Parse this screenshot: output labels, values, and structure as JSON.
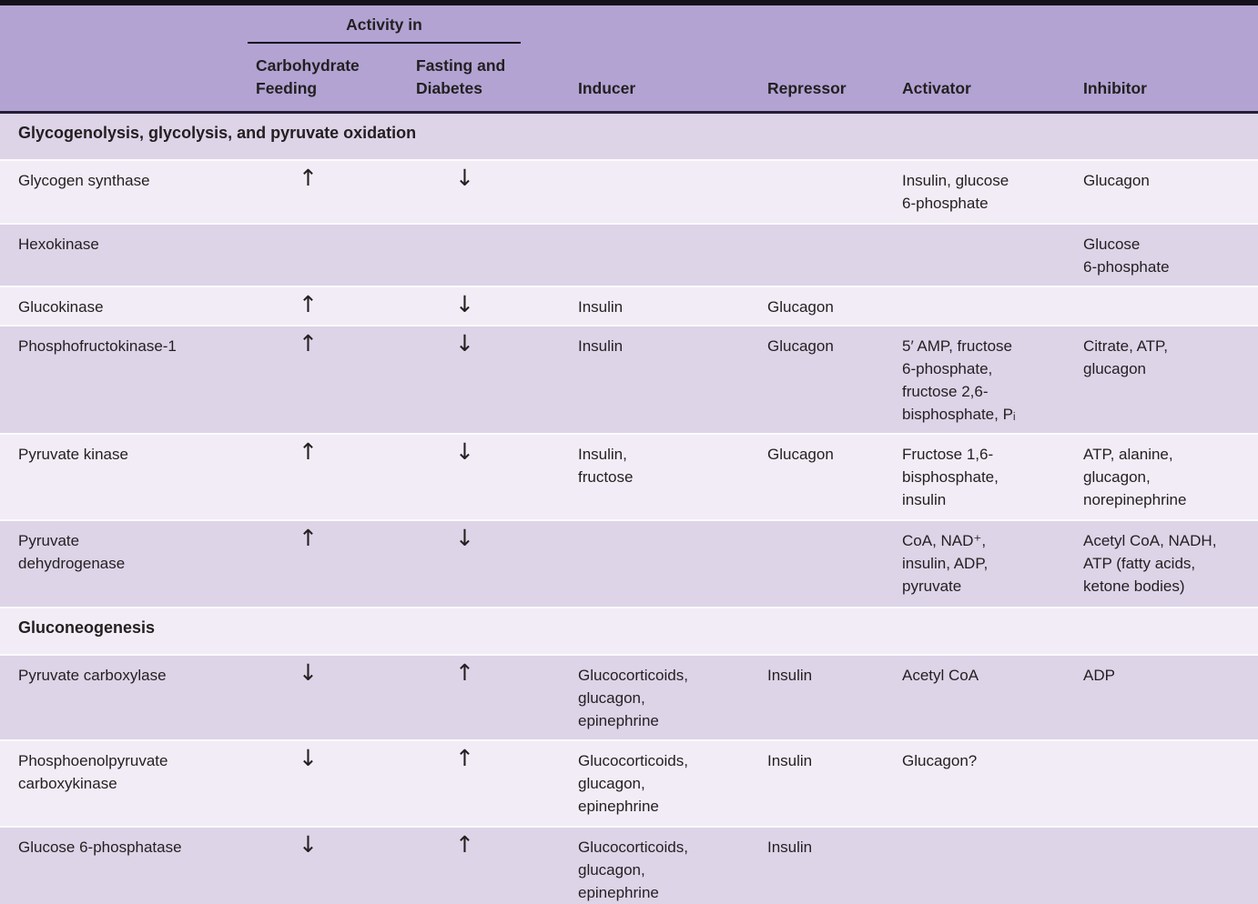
{
  "table": {
    "kind": "enzyme-regulation-table",
    "colors": {
      "header_bg": "#b2a3d3",
      "row_light": "#f1ecf6",
      "row_dark": "#ddd4e8",
      "text": "#231f20",
      "top_bar": "#15101e"
    },
    "header": {
      "activity_group_label": "Activity in",
      "col_carbohydrate": "Carbohydrate\nFeeding",
      "col_fasting": "Fasting and\nDiabetes",
      "col_inducer": "Inducer",
      "col_repressor": "Repressor",
      "col_activator": "Activator",
      "col_inhibitor": "Inhibitor"
    },
    "section1": {
      "title": "Glycogenolysis, glycolysis, and pyruvate oxidation"
    },
    "section2": {
      "title": "Gluconeogenesis"
    },
    "rows": [
      {
        "enzyme": "Glycogen synthase",
        "carb": "↑",
        "fasting": "↓",
        "inducer": "",
        "repressor": "",
        "activator": "Insulin, glucose\n6-phosphate",
        "inhibitor": "Glucagon"
      },
      {
        "enzyme": "Hexokinase",
        "carb": "",
        "fasting": "",
        "inducer": "",
        "repressor": "",
        "activator": "",
        "inhibitor": "Glucose\n6-phosphate"
      },
      {
        "enzyme": "Glucokinase",
        "carb": "↑",
        "fasting": "↓",
        "inducer": "Insulin",
        "repressor": "Glucagon",
        "activator": "",
        "inhibitor": ""
      },
      {
        "enzyme": "Phosphofructokinase-1",
        "carb": "↑",
        "fasting": "↓",
        "inducer": "Insulin",
        "repressor": "Glucagon",
        "activator": "5′ AMP, fructose\n6-phosphate,\nfructose 2,6-\nbisphosphate, Pᵢ",
        "inhibitor": "Citrate, ATP,\nglucagon"
      },
      {
        "enzyme": "Pyruvate kinase",
        "carb": "↑",
        "fasting": "↓",
        "inducer": "Insulin,\nfructose",
        "repressor": "Glucagon",
        "activator": "Fructose 1,6-\nbisphosphate,\ninsulin",
        "inhibitor": "ATP, alanine,\nglucagon,\nnorepinephrine"
      },
      {
        "enzyme": "Pyruvate\ndehydrogenase",
        "carb": "↑",
        "fasting": "↓",
        "inducer": "",
        "repressor": "",
        "activator": "CoA, NAD⁺,\ninsulin, ADP,\npyruvate",
        "inhibitor": "Acetyl CoA, NADH,\nATP (fatty acids,\nketone bodies)"
      },
      {
        "enzyme": "Pyruvate carboxylase",
        "carb": "↓",
        "fasting": "↑",
        "inducer": "Glucocorticoids,\nglucagon,\nepinephrine",
        "repressor": "Insulin",
        "activator": "Acetyl CoA",
        "inhibitor": "ADP"
      },
      {
        "enzyme": "Phosphoenolpyruvate\ncarboxykinase",
        "carb": "↓",
        "fasting": "↑",
        "inducer": "Glucocorticoids,\nglucagon,\nepinephrine",
        "repressor": "Insulin",
        "activator": "Glucagon?",
        "inhibitor": ""
      },
      {
        "enzyme": "Glucose 6-phosphatase",
        "carb": "↓",
        "fasting": "↑",
        "inducer": "Glucocorticoids,\nglucagon,\nepinephrine",
        "repressor": "Insulin",
        "activator": "",
        "inhibitor": ""
      }
    ]
  }
}
